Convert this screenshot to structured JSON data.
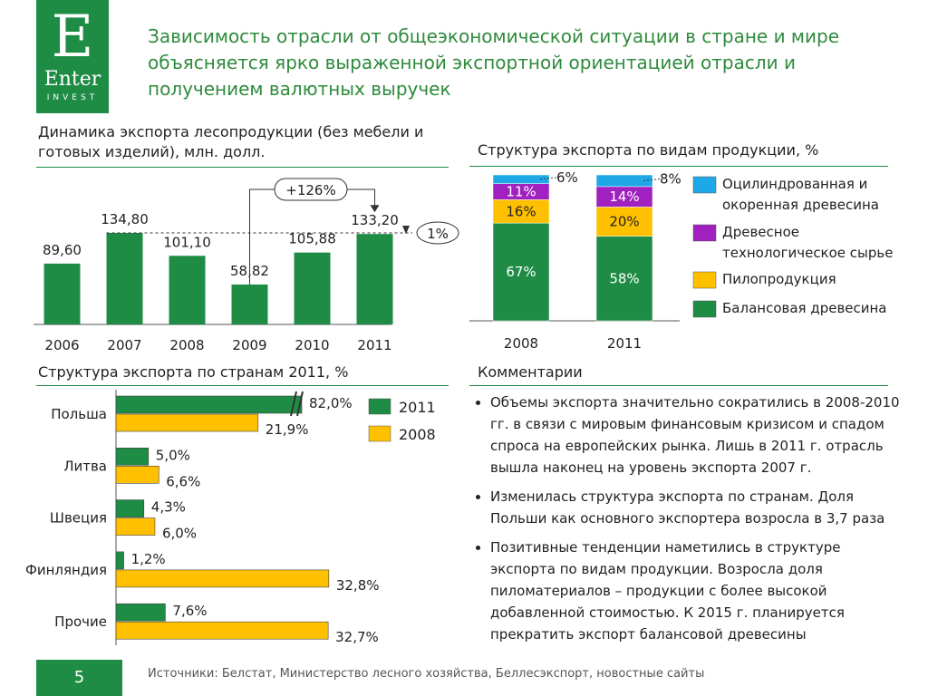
{
  "header": {
    "title": "Зависимость отрасли от общеэкономической ситуации в стране и мире объясняется ярко выраженной экспортной ориентацией отрасли и получением валютных выручек",
    "logo_letter": "E",
    "logo_name": "Enter",
    "logo_sub": "INVEST"
  },
  "chart_data": [
    {
      "type": "bar",
      "title": "Динамика экспорта лесопродукции (без мебели и готовых изделий), млн. долл.",
      "categories": [
        "2006",
        "2007",
        "2008",
        "2009",
        "2010",
        "2011"
      ],
      "values": [
        89.6,
        134.8,
        101.1,
        58.82,
        105.88,
        133.2
      ],
      "value_labels": [
        "89,60",
        "134,80",
        "101,10",
        "58,82",
        "105,88",
        "133,20"
      ],
      "color": "#1e8c45",
      "annotations": [
        "+126%",
        "1%"
      ]
    },
    {
      "type": "stacked_bar",
      "title": "Структура экспорта по видам продукции, %",
      "categories": [
        "2008",
        "2011"
      ],
      "series": [
        {
          "name": "Балансовая древесина",
          "color": "#1e8c45",
          "values": [
            67,
            58
          ],
          "value_labels": [
            "67%",
            "58%"
          ]
        },
        {
          "name": "Пилопродукция",
          "color": "#ffc000",
          "values": [
            16,
            20
          ],
          "value_labels": [
            "16%",
            "20%"
          ]
        },
        {
          "name": "Древесное технологическое сырье",
          "color": "#a020c0",
          "values": [
            11,
            14
          ],
          "value_labels": [
            "11%",
            "14%"
          ]
        },
        {
          "name": "Оцилиндрованная и окоренная древесина",
          "color": "#1fa8e8",
          "values": [
            6,
            8
          ],
          "value_labels": [
            "6%",
            "8%"
          ]
        }
      ]
    },
    {
      "type": "hbar",
      "title": "Структура экспорта по странам 2011, %",
      "categories": [
        "Польша",
        "Литва",
        "Швеция",
        "Финляндия",
        "Прочие"
      ],
      "axis_break": true,
      "series": [
        {
          "name": "2011",
          "color": "#1e8c45",
          "values": [
            82.0,
            5.0,
            4.3,
            1.2,
            7.6
          ],
          "value_labels": [
            "82,0%",
            "5,0%",
            "4,3%",
            "1,2%",
            "7,6%"
          ]
        },
        {
          "name": "2008",
          "color": "#ffc000",
          "values": [
            21.9,
            6.6,
            6.0,
            32.8,
            32.7
          ],
          "value_labels": [
            "21,9%",
            "6,6%",
            "6,0%",
            "32,8%",
            "32,7%"
          ]
        }
      ]
    }
  ],
  "comments": {
    "title": "Комментарии",
    "items": [
      "Объемы экспорта значительно сократились в 2008-2010 гг. в связи с мировым финансовым кризисом и спадом спроса на европейских рынка. Лишь в 2011 г. отрасль вышла наконец на уровень экспорта 2007 г.",
      "Изменилась структура экспорта по странам. Доля Польши как основного экспортера возросла в 3,7 раза",
      "Позитивные тенденции наметились в структуре экспорта по видам продукции. Возросла доля пиломатериалов – продукции с более высокой добавленной стоимостью. К 2015 г. планируется прекратить экспорт балансовой древесины"
    ]
  },
  "footer": {
    "page": "5",
    "source": "Источники: Белстат, Министерство лесного хозяйства, Беллесэкспорт, новостные сайты"
  }
}
